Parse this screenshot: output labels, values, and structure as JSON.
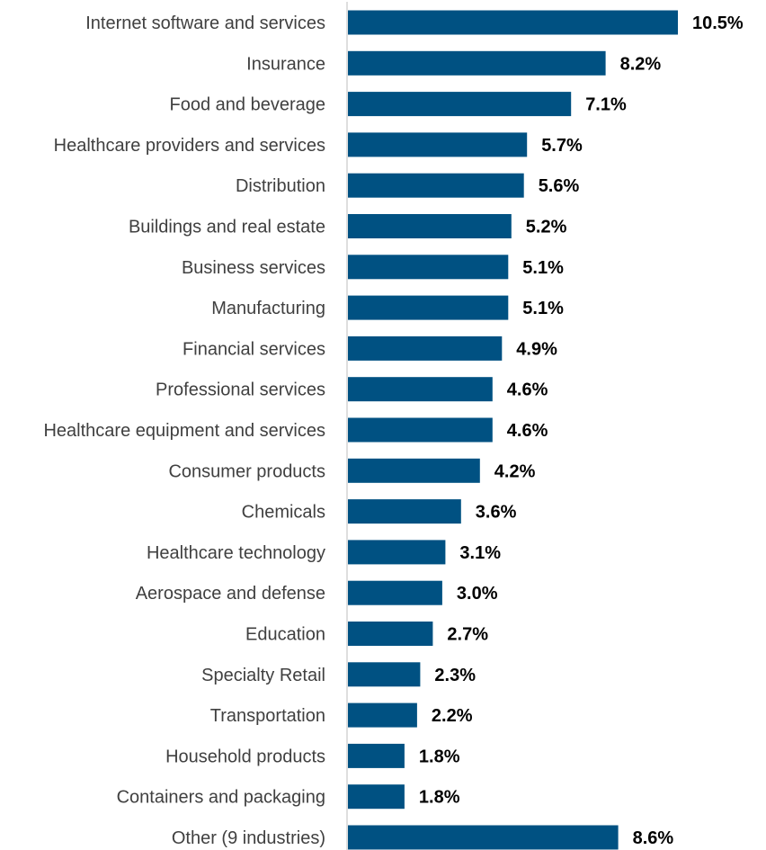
{
  "chart_data": {
    "type": "bar",
    "orientation": "horizontal",
    "categories": [
      "Internet software and services",
      "Insurance",
      "Food and beverage",
      "Healthcare providers and services",
      "Distribution",
      "Buildings and real estate",
      "Business services",
      "Manufacturing",
      "Financial services",
      "Professional services",
      "Healthcare equipment and services",
      "Consumer products",
      "Chemicals",
      "Healthcare technology",
      "Aerospace and defense",
      "Education",
      "Specialty Retail",
      "Transportation",
      "Household products",
      "Containers and packaging",
      "Other (9 industries)"
    ],
    "values": [
      10.5,
      8.2,
      7.1,
      5.7,
      5.6,
      5.2,
      5.1,
      5.1,
      4.9,
      4.6,
      4.6,
      4.2,
      3.6,
      3.1,
      3.0,
      2.7,
      2.3,
      2.2,
      1.8,
      1.8,
      8.6
    ],
    "value_labels": [
      "10.5%",
      "8.2%",
      "7.1%",
      "5.7%",
      "5.6%",
      "5.2%",
      "5.1%",
      "5.1%",
      "4.9%",
      "4.6%",
      "4.6%",
      "4.2%",
      "3.6%",
      "3.1%",
      "3.0%",
      "2.7%",
      "2.3%",
      "2.2%",
      "1.8%",
      "1.8%",
      "8.6%"
    ],
    "unit": "%",
    "title": "",
    "xlabel": "",
    "ylabel": "",
    "xlim": [
      0,
      10.5
    ],
    "grid": false,
    "legend": "none",
    "colors": {
      "bar": "#005182",
      "axis": "#bfbfbf",
      "category_text": "#404040",
      "value_text": "#000000"
    }
  }
}
